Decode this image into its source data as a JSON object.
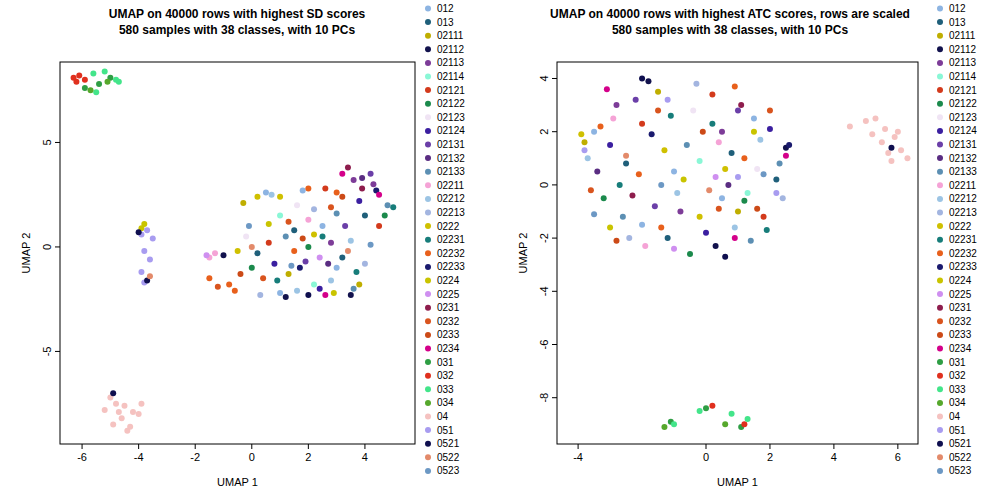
{
  "chart_data": [
    {
      "type": "scatter",
      "title": "UMAP on 40000 rows with highest SD scores",
      "subtitle": "580 samples with 38 classes, with 10 PCs",
      "x_label": "UMAP 1",
      "y_label": "UMAP 2",
      "xlim": [
        -6.78,
        5.77
      ],
      "ylim": [
        -9.43,
        8.85
      ],
      "xticks": [
        -6,
        -4,
        -2,
        0,
        2,
        4
      ],
      "yticks": [
        -5,
        0,
        5
      ],
      "legend": "right",
      "marker": "circle",
      "series": [
        {
          "name": "012",
          "color": "#8db4e2",
          "x": [
            0.5,
            1.8,
            2.5,
            3.0,
            1.0
          ],
          "values": [
            2.6,
            2.7,
            1.0,
            -1.0,
            -2.2
          ]
        },
        {
          "name": "013",
          "color": "#1f5f7a",
          "x": [
            0.2,
            1.5,
            3.2,
            4.0
          ],
          "values": [
            -0.3,
            0.8,
            -0.5,
            1.5
          ]
        },
        {
          "name": "02111",
          "color": "#bfae00",
          "x": [
            -0.3,
            1.3,
            3.8
          ],
          "values": [
            2.1,
            -1.3,
            -1.8
          ]
        },
        {
          "name": "02112",
          "color": "#12124d",
          "x": [
            1.2,
            3.5,
            -1.0
          ],
          "values": [
            -2.4,
            -2.3,
            -0.4
          ]
        },
        {
          "name": "02113",
          "color": "#7d3c98",
          "x": [
            3.6,
            4.3,
            2.8
          ],
          "values": [
            3.2,
            3.0,
            0.2
          ]
        },
        {
          "name": "02114",
          "color": "#8af7d6",
          "x": [
            1.0,
            2.2
          ],
          "values": [
            1.5,
            -1.8
          ]
        },
        {
          "name": "02121",
          "color": "#d33a1c",
          "x": [
            2.6,
            0.6,
            4.5
          ],
          "values": [
            2.8,
            0.2,
            1.0
          ]
        },
        {
          "name": "02122",
          "color": "#1b8a4c",
          "x": [
            2.0,
            4.7,
            0.0
          ],
          "values": [
            0.0,
            1.5,
            -1.0
          ]
        },
        {
          "name": "02123",
          "color": "#f0e4f4",
          "x": [
            1.6,
            -0.2
          ],
          "values": [
            2.0,
            0.5
          ]
        },
        {
          "name": "02124",
          "color": "#3b1fa0",
          "x": [
            3.8,
            2.4,
            0.8
          ],
          "values": [
            2.2,
            -2.0,
            -0.8
          ]
        },
        {
          "name": "02131",
          "color": "#6b3fa8",
          "x": [
            4.2,
            3.3,
            1.9
          ],
          "values": [
            3.5,
            1.0,
            -0.7
          ]
        },
        {
          "name": "02132",
          "color": "#5a2d82",
          "x": [
            3.9,
            2.7
          ],
          "values": [
            3.3,
            -0.8
          ]
        },
        {
          "name": "02133",
          "color": "#5c8fb3",
          "x": [
            4.8,
            3.0,
            1.2,
            3.6
          ],
          "values": [
            2.0,
            1.6,
            0.5,
            -2.0
          ]
        },
        {
          "name": "02211",
          "color": "#f5a3d6",
          "x": [
            -1.5,
            -1.3,
            2.0
          ],
          "values": [
            -0.5,
            -0.3,
            1.3
          ]
        },
        {
          "name": "02212",
          "color": "#9cc4e4",
          "x": [
            0.7,
            1.6,
            2.8,
            3.5
          ],
          "values": [
            2.5,
            -2.1,
            -1.6,
            0.3
          ]
        },
        {
          "name": "02213",
          "color": "#a3b5e0",
          "x": [
            2.2,
            0.3,
            4.0
          ],
          "values": [
            1.8,
            -2.3,
            -0.8
          ]
        },
        {
          "name": "0222",
          "color": "#cfc000",
          "x": [
            0.2,
            1.0,
            2.2,
            -0.5
          ],
          "values": [
            2.4,
            2.4,
            0.6,
            -0.2
          ]
        },
        {
          "name": "02231",
          "color": "#177d7a",
          "x": [
            5.0,
            2.5,
            0.9,
            3.7
          ],
          "values": [
            1.9,
            0.5,
            -1.6,
            -1.2
          ]
        },
        {
          "name": "02232",
          "color": "#e8601c",
          "x": [
            -1.5,
            -0.8,
            -0.6,
            2.0,
            3.0,
            1.5
          ],
          "values": [
            -1.5,
            -1.8,
            -2.1,
            2.8,
            2.6,
            -0.2
          ]
        },
        {
          "name": "02233",
          "color": "#1a1a6e",
          "x": [
            4.4,
            1.7
          ],
          "values": [
            2.7,
            -1.0
          ]
        },
        {
          "name": "0224",
          "color": "#c9c400",
          "x": [
            -3.8,
            -3.9,
            0.6,
            2.9
          ],
          "values": [
            1.1,
            0.9,
            1.1,
            -2.2
          ]
        },
        {
          "name": "0225",
          "color": "#cf8ff0",
          "x": [
            -1.6,
            2.4
          ],
          "values": [
            -0.4,
            -0.5
          ]
        },
        {
          "name": "0231",
          "color": "#8e1d4d",
          "x": [
            3.4,
            3.9
          ],
          "values": [
            3.8,
            2.8
          ]
        },
        {
          "name": "0232",
          "color": "#d9541e",
          "x": [
            -1.2,
            0.4,
            2.8,
            1.3
          ],
          "values": [
            -1.9,
            -1.5,
            1.9,
            1.2
          ]
        },
        {
          "name": "0233",
          "color": "#cc4a17",
          "x": [
            -0.4,
            3.2,
            1.8
          ],
          "values": [
            -1.3,
            2.4,
            0.4
          ]
        },
        {
          "name": "0234",
          "color": "#d4008a",
          "x": [
            3.2,
            4.5,
            2.6
          ],
          "values": [
            3.5,
            2.5,
            -2.3
          ]
        },
        {
          "name": "031",
          "color": "#2e9e44",
          "x": [
            -5.9,
            -5.4,
            -5.0
          ],
          "values": [
            7.6,
            7.8,
            8.1
          ]
        },
        {
          "name": "032",
          "color": "#e0301e",
          "x": [
            -6.3,
            -6.1,
            -5.9,
            -6.2
          ],
          "values": [
            8.1,
            8.2,
            8.0,
            7.9
          ]
        },
        {
          "name": "033",
          "color": "#43e58a",
          "x": [
            -5.6,
            -5.2,
            -4.8,
            -5.5,
            -4.7
          ],
          "values": [
            8.3,
            8.4,
            8.0,
            7.4,
            7.9
          ]
        },
        {
          "name": "034",
          "color": "#56a82c",
          "x": [
            -5.7,
            -5.1
          ],
          "values": [
            7.5,
            7.9
          ]
        },
        {
          "name": "04",
          "color": "#f5c2c0",
          "x": [
            -5.0,
            -4.8,
            -4.5,
            -4.2,
            -4.6,
            -4.9,
            -4.3,
            -4.0,
            -5.2,
            -4.4,
            -3.9,
            -4.7
          ],
          "values": [
            -7.2,
            -7.5,
            -7.6,
            -7.9,
            -8.2,
            -8.5,
            -8.6,
            -8.0,
            -7.8,
            -8.8,
            -7.5,
            -7.9
          ]
        },
        {
          "name": "051",
          "color": "#a89cf0",
          "x": [
            -3.9,
            -3.7,
            -3.8,
            -3.6,
            -3.9,
            -3.5,
            -3.8
          ],
          "values": [
            0.6,
            0.8,
            -0.2,
            -0.6,
            -1.2,
            0.4,
            -1.7
          ]
        },
        {
          "name": "0521",
          "color": "#0f0f4f",
          "x": [
            -4.0,
            -3.7,
            -4.9,
            2.0
          ],
          "values": [
            0.7,
            -1.6,
            -7.0,
            -2.3
          ]
        },
        {
          "name": "0522",
          "color": "#e38a6a",
          "x": [
            -3.6,
            0.0,
            3.4
          ],
          "values": [
            -1.4,
            0.0,
            -0.2
          ]
        },
        {
          "name": "0523",
          "color": "#6c98c4",
          "x": [
            1.4,
            4.2,
            -0.1
          ],
          "values": [
            -0.9,
            0.1,
            1.0
          ]
        }
      ]
    },
    {
      "type": "scatter",
      "title": "UMAP on 40000 rows with highest ATC scores, rows are scaled",
      "subtitle": "580 samples with 38 classes, with 10 PCs",
      "x_label": "UMAP 1",
      "y_label": "UMAP 2",
      "xlim": [
        -4.66,
        6.63
      ],
      "ylim": [
        -9.74,
        4.62
      ],
      "xticks": [
        -4,
        0,
        2,
        4,
        6
      ],
      "yticks": [
        -8,
        -6,
        -4,
        -2,
        0,
        2,
        4
      ],
      "legend": "right",
      "marker": "circle",
      "series": [
        {
          "name": "012",
          "color": "#8db4e2",
          "x": [
            -3.5,
            -1.0,
            0.5,
            1.5,
            -2.0
          ],
          "values": [
            2.0,
            0.5,
            -0.5,
            2.5,
            -1.5
          ]
        },
        {
          "name": "013",
          "color": "#1f5f7a",
          "x": [
            -2.5,
            0.8,
            2.2,
            -1.2
          ],
          "values": [
            0.8,
            1.2,
            0.2,
            -2.0
          ]
        },
        {
          "name": "02111",
          "color": "#bfae00",
          "x": [
            -3.8,
            -1.5,
            1.0
          ],
          "values": [
            1.6,
            3.5,
            -1.0
          ]
        },
        {
          "name": "02112",
          "color": "#12124d",
          "x": [
            -1.8,
            0.3,
            2.5
          ],
          "values": [
            3.9,
            -2.3,
            1.4
          ]
        },
        {
          "name": "02113",
          "color": "#7d3c98",
          "x": [
            -2.8,
            0.5,
            -0.8
          ],
          "values": [
            3.0,
            2.0,
            -1.0
          ]
        },
        {
          "name": "02114",
          "color": "#8af7d6",
          "x": [
            -0.2,
            1.3
          ],
          "values": [
            0.9,
            -0.3
          ]
        },
        {
          "name": "02121",
          "color": "#d33a1c",
          "x": [
            -2.0,
            0.2,
            1.8
          ],
          "values": [
            2.3,
            3.4,
            -1.2
          ]
        },
        {
          "name": "02122",
          "color": "#1b8a4c",
          "x": [
            -3.2,
            1.2,
            -0.5
          ],
          "values": [
            -0.5,
            -0.6,
            -2.6
          ]
        },
        {
          "name": "02123",
          "color": "#f0e4f4",
          "x": [
            -0.4,
            1.6
          ],
          "values": [
            2.8,
            0.6
          ]
        },
        {
          "name": "02124",
          "color": "#3b1fa0",
          "x": [
            -3.0,
            0.0,
            2.0
          ],
          "values": [
            1.5,
            -1.8,
            2.1
          ]
        },
        {
          "name": "02131",
          "color": "#6b3fa8",
          "x": [
            -1.6,
            1.0,
            -2.2
          ],
          "values": [
            -0.8,
            2.8,
            3.2
          ]
        },
        {
          "name": "02132",
          "color": "#5a2d82",
          "x": [
            -3.4,
            0.7
          ],
          "values": [
            0.5,
            0.0
          ]
        },
        {
          "name": "02133",
          "color": "#5c8fb3",
          "x": [
            -2.6,
            2.3,
            -0.6,
            1.4
          ],
          "values": [
            -1.2,
            0.8,
            1.5,
            -2.1
          ]
        },
        {
          "name": "02211",
          "color": "#f5a3d6",
          "x": [
            -1.9,
            0.4,
            -2.9
          ],
          "values": [
            -2.3,
            1.6,
            2.5
          ]
        },
        {
          "name": "02212",
          "color": "#9cc4e4",
          "x": [
            -3.7,
            -0.9,
            1.7,
            0.9
          ],
          "values": [
            1.0,
            -0.3,
            1.7,
            -1.6
          ]
        },
        {
          "name": "02213",
          "color": "#a3b5e0",
          "x": [
            -2.4,
            -0.3,
            2.4
          ],
          "values": [
            -2.0,
            3.8,
            -0.5
          ]
        },
        {
          "name": "0222",
          "color": "#cfc000",
          "x": [
            -3.9,
            -1.3,
            0.6,
            -0.2
          ],
          "values": [
            1.9,
            1.3,
            0.6,
            -1.2
          ]
        },
        {
          "name": "02231",
          "color": "#177d7a",
          "x": [
            -2.7,
            0.2,
            1.9,
            -1.1
          ],
          "values": [
            0.0,
            2.3,
            -1.7,
            2.6
          ]
        },
        {
          "name": "02232",
          "color": "#e8601c",
          "x": [
            -3.3,
            -1.4,
            0.9,
            1.2,
            -2.1
          ],
          "values": [
            2.2,
            -1.6,
            3.7,
            1.0,
            0.4
          ]
        },
        {
          "name": "02233",
          "color": "#1a1a6e",
          "x": [
            -1.7,
            2.6
          ],
          "values": [
            1.9,
            1.5
          ]
        },
        {
          "name": "0224",
          "color": "#c9c400",
          "x": [
            -3.0,
            -0.7,
            1.5
          ],
          "values": [
            -1.6,
            0.2,
            2.0
          ]
        },
        {
          "name": "0225",
          "color": "#cf8ff0",
          "x": [
            -1.0,
            0.3
          ],
          "values": [
            -2.4,
            0.3
          ]
        },
        {
          "name": "0231",
          "color": "#8e1d4d",
          "x": [
            -2.3,
            1.1
          ],
          "values": [
            -0.4,
            3.0
          ]
        },
        {
          "name": "0232",
          "color": "#d9541e",
          "x": [
            -3.6,
            -1.5,
            0.4,
            2.0
          ],
          "values": [
            -0.2,
            2.8,
            -0.9,
            2.8
          ]
        },
        {
          "name": "0233",
          "color": "#cc4a17",
          "x": [
            -2.8,
            -0.1,
            1.6
          ],
          "values": [
            -2.1,
            2.0,
            -0.9
          ]
        },
        {
          "name": "0234",
          "color": "#d4008a",
          "x": [
            -3.1,
            0.9,
            2.5
          ],
          "values": [
            3.6,
            -2.0,
            1.1
          ]
        },
        {
          "name": "031",
          "color": "#2e9e44",
          "x": [
            -1.1,
            0.0,
            1.1
          ],
          "values": [
            -8.9,
            -8.4,
            -9.1
          ]
        },
        {
          "name": "032",
          "color": "#e0301e",
          "x": [
            1.2,
            0.2
          ],
          "values": [
            -9.0,
            -8.3
          ]
        },
        {
          "name": "033",
          "color": "#43e58a",
          "x": [
            -1.0,
            0.8,
            1.3,
            -0.2
          ],
          "values": [
            -9.0,
            -8.6,
            -8.8,
            -8.5
          ]
        },
        {
          "name": "034",
          "color": "#56a82c",
          "x": [
            -1.3,
            0.6
          ],
          "values": [
            -9.1,
            -9.0
          ]
        },
        {
          "name": "04",
          "color": "#f5c2c0",
          "x": [
            4.5,
            5.0,
            5.3,
            5.6,
            5.9,
            6.1,
            6.3,
            5.8,
            5.5,
            5.2,
            6.0,
            5.7
          ],
          "values": [
            2.2,
            2.4,
            2.5,
            2.1,
            1.8,
            1.3,
            1.0,
            0.9,
            1.6,
            1.9,
            2.0,
            1.2
          ]
        },
        {
          "name": "051",
          "color": "#a89cf0",
          "x": [
            -3.8,
            -1.2,
            1.0,
            2.2
          ],
          "values": [
            1.3,
            3.2,
            0.3,
            -0.3
          ]
        },
        {
          "name": "0521",
          "color": "#0f0f4f",
          "x": [
            5.8,
            -2.0,
            0.6
          ],
          "values": [
            1.4,
            4.0,
            -2.7
          ]
        },
        {
          "name": "0522",
          "color": "#e38a6a",
          "x": [
            -2.5,
            0.1
          ],
          "values": [
            1.1,
            -0.2
          ]
        },
        {
          "name": "0523",
          "color": "#6c98c4",
          "x": [
            -1.4,
            1.8,
            -3.5
          ],
          "values": [
            0.0,
            0.4,
            -1.1
          ]
        }
      ]
    }
  ]
}
